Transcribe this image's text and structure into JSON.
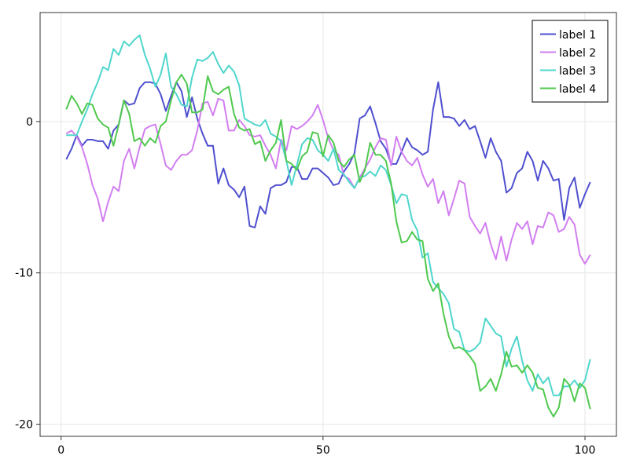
{
  "chart_data": {
    "type": "line",
    "title": "",
    "xlabel": "",
    "ylabel": "",
    "xlim": [
      -4,
      106
    ],
    "ylim": [
      -20.8,
      7.2
    ],
    "x_ticks": [
      0,
      50,
      100
    ],
    "x_tick_labels": [
      "0",
      "50",
      "100"
    ],
    "y_ticks": [
      0,
      -10,
      -20
    ],
    "y_tick_labels": [
      "0",
      "-10",
      "-20"
    ],
    "grid": true,
    "legend_position": "top-right",
    "x": [
      1,
      2,
      3,
      4,
      5,
      6,
      7,
      8,
      9,
      10,
      11,
      12,
      13,
      14,
      15,
      16,
      17,
      18,
      19,
      20,
      21,
      22,
      23,
      24,
      25,
      26,
      27,
      28,
      29,
      30,
      31,
      32,
      33,
      34,
      35,
      36,
      37,
      38,
      39,
      40,
      41,
      42,
      43,
      44,
      45,
      46,
      47,
      48,
      49,
      50,
      51,
      52,
      53,
      54,
      55,
      56,
      57,
      58,
      59,
      60,
      61,
      62,
      63,
      64,
      65,
      66,
      67,
      68,
      69,
      70,
      71,
      72,
      73,
      74,
      75,
      76,
      77,
      78,
      79,
      80,
      81,
      82,
      83,
      84,
      85,
      86,
      87,
      88,
      89,
      90,
      91,
      92,
      93,
      94,
      95,
      96,
      97,
      98,
      99,
      100,
      101
    ],
    "series": [
      {
        "name": "label 1",
        "color": "#4f4fcf",
        "values": [
          -2.5,
          -1.8,
          -0.9,
          -1.6,
          -1.2,
          -1.2,
          -1.3,
          -1.3,
          -1.8,
          -0.6,
          -0.2,
          1.4,
          1.1,
          1.2,
          2.2,
          2.6,
          2.6,
          2.5,
          1.8,
          0.7,
          1.7,
          2.6,
          2.0,
          0.3,
          1.6,
          0.2,
          -0.8,
          -1.6,
          -1.6,
          -4.1,
          -3.1,
          -4.2,
          -4.5,
          -5.0,
          -4.3,
          -6.9,
          -7.0,
          -5.6,
          -6.1,
          -4.4,
          -4.2,
          -4.2,
          -4.0,
          -3.0,
          -3.0,
          -3.8,
          -3.8,
          -3.1,
          -3.1,
          -3.4,
          -3.7,
          -4.2,
          -4.1,
          -3.3,
          -2.8,
          -2.1,
          0.2,
          0.4,
          1.0,
          -0.1,
          -1.3,
          -1.8,
          -2.8,
          -2.8,
          -2.0,
          -1.1,
          -1.7,
          -1.9,
          -2.2,
          -2.0,
          0.8,
          2.6,
          0.3,
          0.3,
          0.2,
          -0.3,
          0.1,
          -0.5,
          -0.3,
          -1.3,
          -2.4,
          -1.1,
          -2.0,
          -2.6,
          -4.7,
          -4.4,
          -3.4,
          -3.1,
          -2.0,
          -2.6,
          -3.9,
          -2.6,
          -3.1,
          -3.9,
          -3.8,
          -6.5,
          -4.4,
          -3.7,
          -5.7,
          -4.8,
          -4.0
        ]
      },
      {
        "name": "label 2",
        "color": "#d27ef0",
        "values": [
          -0.8,
          -0.6,
          -1.0,
          -1.7,
          -2.8,
          -4.2,
          -5.1,
          -6.6,
          -5.3,
          -4.3,
          -4.6,
          -2.6,
          -1.8,
          -3.1,
          -1.7,
          -0.5,
          -0.3,
          -0.2,
          -1.5,
          -2.9,
          -3.2,
          -2.6,
          -2.2,
          -2.2,
          -1.9,
          -0.6,
          1.2,
          1.3,
          0.4,
          1.5,
          1.4,
          -0.6,
          -0.6,
          0.1,
          -0.3,
          -0.9,
          -1.0,
          -0.9,
          -1.6,
          -2.2,
          -3.1,
          -1.2,
          -1.9,
          -0.3,
          -0.5,
          -0.3,
          0.0,
          0.4,
          1.1,
          0.1,
          -1.1,
          -1.9,
          -2.2,
          -3.6,
          -3.8,
          -4.4,
          -3.7,
          -3.1,
          -2.5,
          -1.7,
          -1.1,
          -1.2,
          -2.9,
          -1.0,
          -2.0,
          -2.6,
          -2.9,
          -2.4,
          -3.5,
          -4.3,
          -3.8,
          -5.4,
          -4.6,
          -6.2,
          -5.1,
          -3.9,
          -4.1,
          -6.3,
          -6.9,
          -7.4,
          -6.7,
          -8.1,
          -9.1,
          -7.6,
          -9.2,
          -7.8,
          -6.7,
          -7.1,
          -6.6,
          -8.1,
          -6.9,
          -7.0,
          -6.0,
          -6.2,
          -7.3,
          -7.1,
          -6.3,
          -6.8,
          -8.8,
          -9.4,
          -8.8
        ]
      },
      {
        "name": "label 3",
        "color": "#4fd6cc",
        "values": [
          -0.9,
          -0.9,
          -0.9,
          0.0,
          0.8,
          1.8,
          2.6,
          3.6,
          3.4,
          4.8,
          4.4,
          5.3,
          5.0,
          5.4,
          5.7,
          4.4,
          3.5,
          2.3,
          3.1,
          4.5,
          2.3,
          1.8,
          1.1,
          1.0,
          2.9,
          4.1,
          4.0,
          4.2,
          4.6,
          3.8,
          3.2,
          3.7,
          3.3,
          2.4,
          0.2,
          0.0,
          -0.2,
          -0.3,
          0.1,
          -0.8,
          -1.0,
          -1.3,
          -2.6,
          -4.2,
          -2.9,
          -1.5,
          -1.1,
          -1.2,
          -1.9,
          -2.2,
          -2.6,
          -1.8,
          -3.2,
          -3.5,
          -4.0,
          -4.4,
          -3.7,
          -3.6,
          -3.3,
          -3.6,
          -2.9,
          -3.2,
          -4.2,
          -5.4,
          -4.8,
          -4.9,
          -6.5,
          -7.2,
          -9.0,
          -8.7,
          -10.6,
          -11.0,
          -11.4,
          -12.0,
          -13.7,
          -13.9,
          -15.1,
          -15.2,
          -15.0,
          -14.6,
          -13.0,
          -13.5,
          -14.0,
          -14.2,
          -16.2,
          -15.0,
          -14.2,
          -15.8,
          -17.1,
          -17.8,
          -16.7,
          -17.3,
          -16.9,
          -18.1,
          -18.1,
          -17.5,
          -17.5,
          -17.1,
          -17.6,
          -17.1,
          -15.7
        ]
      },
      {
        "name": "label 4",
        "color": "#4fc94f",
        "values": [
          0.8,
          1.7,
          1.2,
          0.5,
          1.2,
          1.1,
          0.2,
          -0.2,
          -0.4,
          -1.6,
          -0.2,
          1.4,
          0.5,
          -1.3,
          -1.1,
          -1.6,
          -1.1,
          -1.4,
          -0.3,
          0.0,
          1.4,
          2.6,
          3.1,
          2.5,
          0.6,
          0.6,
          0.8,
          3.0,
          2.0,
          1.8,
          2.1,
          2.3,
          0.5,
          -0.4,
          -0.6,
          -0.5,
          -1.5,
          -1.3,
          -2.6,
          -1.9,
          -1.4,
          0.1,
          -2.6,
          -2.8,
          -3.2,
          -2.3,
          -2.0,
          -0.7,
          -0.8,
          -2.3,
          -0.9,
          -1.4,
          -2.6,
          -3.0,
          -2.5,
          -2.2,
          -4.0,
          -3.2,
          -1.4,
          -2.2,
          -2.2,
          -2.6,
          -4.1,
          -6.6,
          -8.0,
          -7.9,
          -7.3,
          -7.8,
          -7.9,
          -10.4,
          -11.2,
          -10.7,
          -12.7,
          -14.2,
          -15.0,
          -14.9,
          -15.1,
          -15.5,
          -16.0,
          -17.8,
          -17.5,
          -17.0,
          -17.8,
          -16.7,
          -15.2,
          -16.2,
          -16.1,
          -16.6,
          -16.1,
          -16.6,
          -17.6,
          -17.7,
          -18.9,
          -19.5,
          -18.9,
          -17.0,
          -17.4,
          -18.5,
          -17.3,
          -17.6,
          -19.0
        ]
      }
    ]
  }
}
